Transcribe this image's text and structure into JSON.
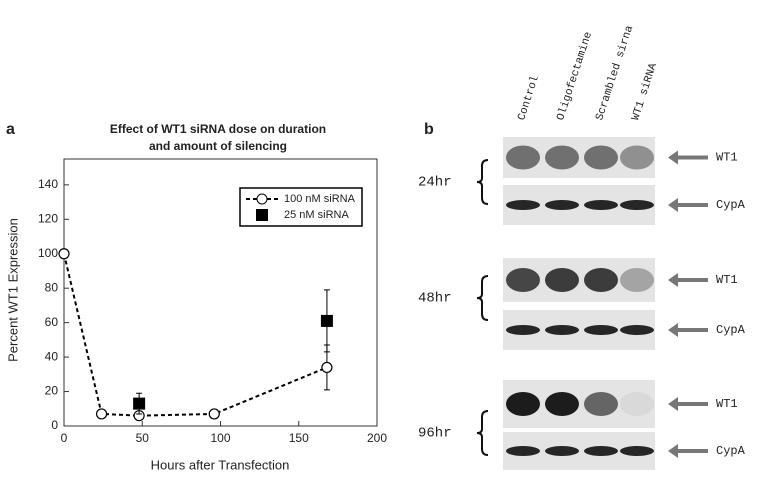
{
  "panel_labels": [
    "a",
    "b"
  ],
  "chart_data": {
    "type": "line",
    "title": [
      "Effect of WT1 siRNA dose on duration",
      "and amount of silencing"
    ],
    "x_label": "Hours after Transfection",
    "y_label": "Percent WT1 Expression",
    "xlim": [
      0,
      200
    ],
    "xticks": [
      0,
      50,
      100,
      150,
      200
    ],
    "ylim": [
      0,
      155
    ],
    "yticks": [
      0,
      20,
      40,
      60,
      80,
      100,
      120,
      140
    ],
    "legend": "upper right",
    "series": [
      {
        "name": "100 nM siRNA",
        "color": "#000000",
        "marker": "open-circle",
        "line": "dashed",
        "x": [
          0,
          24,
          48,
          96,
          168
        ],
        "values": [
          100,
          7,
          6,
          7,
          34
        ],
        "errors": [
          null,
          null,
          null,
          null,
          13
        ]
      },
      {
        "name": "25 nM siRNA",
        "color": "#000000",
        "marker": "square",
        "line": "none",
        "x": [
          48,
          168
        ],
        "values": [
          13,
          61
        ],
        "errors": [
          6,
          18
        ]
      }
    ]
  },
  "blot": {
    "lanes": [
      "Control",
      "Oligofectamine",
      "Scrambled sirna",
      "WT1 siRNA"
    ],
    "groups": [
      {
        "time": "24hr",
        "bands": [
          "WT1",
          "CypA"
        ]
      },
      {
        "time": "48hr",
        "bands": [
          "WT1",
          "CypA"
        ]
      },
      {
        "time": "96hr",
        "bands": [
          "WT1",
          "CypA"
        ]
      }
    ]
  }
}
